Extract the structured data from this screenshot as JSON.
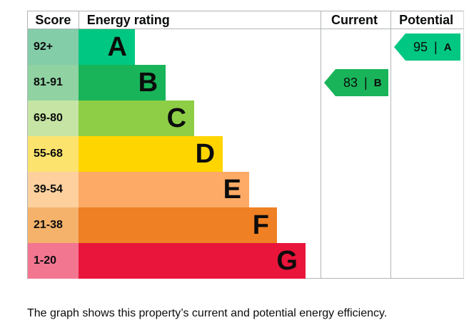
{
  "header": {
    "score": "Score",
    "rating": "Energy rating",
    "current": "Current",
    "potential": "Potential"
  },
  "chart_data": {
    "type": "bar",
    "description": "EPC energy efficiency rating bands with current and potential scores",
    "bands": [
      {
        "band": "A",
        "score_range": "92+",
        "bar_color": "#00c781",
        "score_bg": "#84cda9",
        "bar_width": "23.3%"
      },
      {
        "band": "B",
        "score_range": "81-91",
        "bar_color": "#19b459",
        "score_bg": "#90d2a2",
        "bar_width": "36.0%"
      },
      {
        "band": "C",
        "score_range": "69-80",
        "bar_color": "#8dce46",
        "score_bg": "#c6e5a4",
        "bar_width": "47.8%"
      },
      {
        "band": "D",
        "score_range": "55-68",
        "bar_color": "#ffd500",
        "score_bg": "#fbe36e",
        "bar_width": "59.6%"
      },
      {
        "band": "E",
        "score_range": "39-54",
        "bar_color": "#fcaa65",
        "score_bg": "#fdd09e",
        "bar_width": "70.5%"
      },
      {
        "band": "F",
        "score_range": "21-38",
        "bar_color": "#ef8023",
        "score_bg": "#f5b26b",
        "bar_width": "82.0%"
      },
      {
        "band": "G",
        "score_range": "1-20",
        "bar_color": "#e9153b",
        "score_bg": "#f37691",
        "bar_width": "93.8%"
      }
    ],
    "current": {
      "value": "83",
      "band": "B",
      "color": "#19b459",
      "separator": "|"
    },
    "potential": {
      "value": "95",
      "band": "A",
      "color": "#00c781",
      "separator": "|"
    }
  },
  "footer": {
    "caption": "The graph shows this property’s current and potential energy efficiency."
  }
}
